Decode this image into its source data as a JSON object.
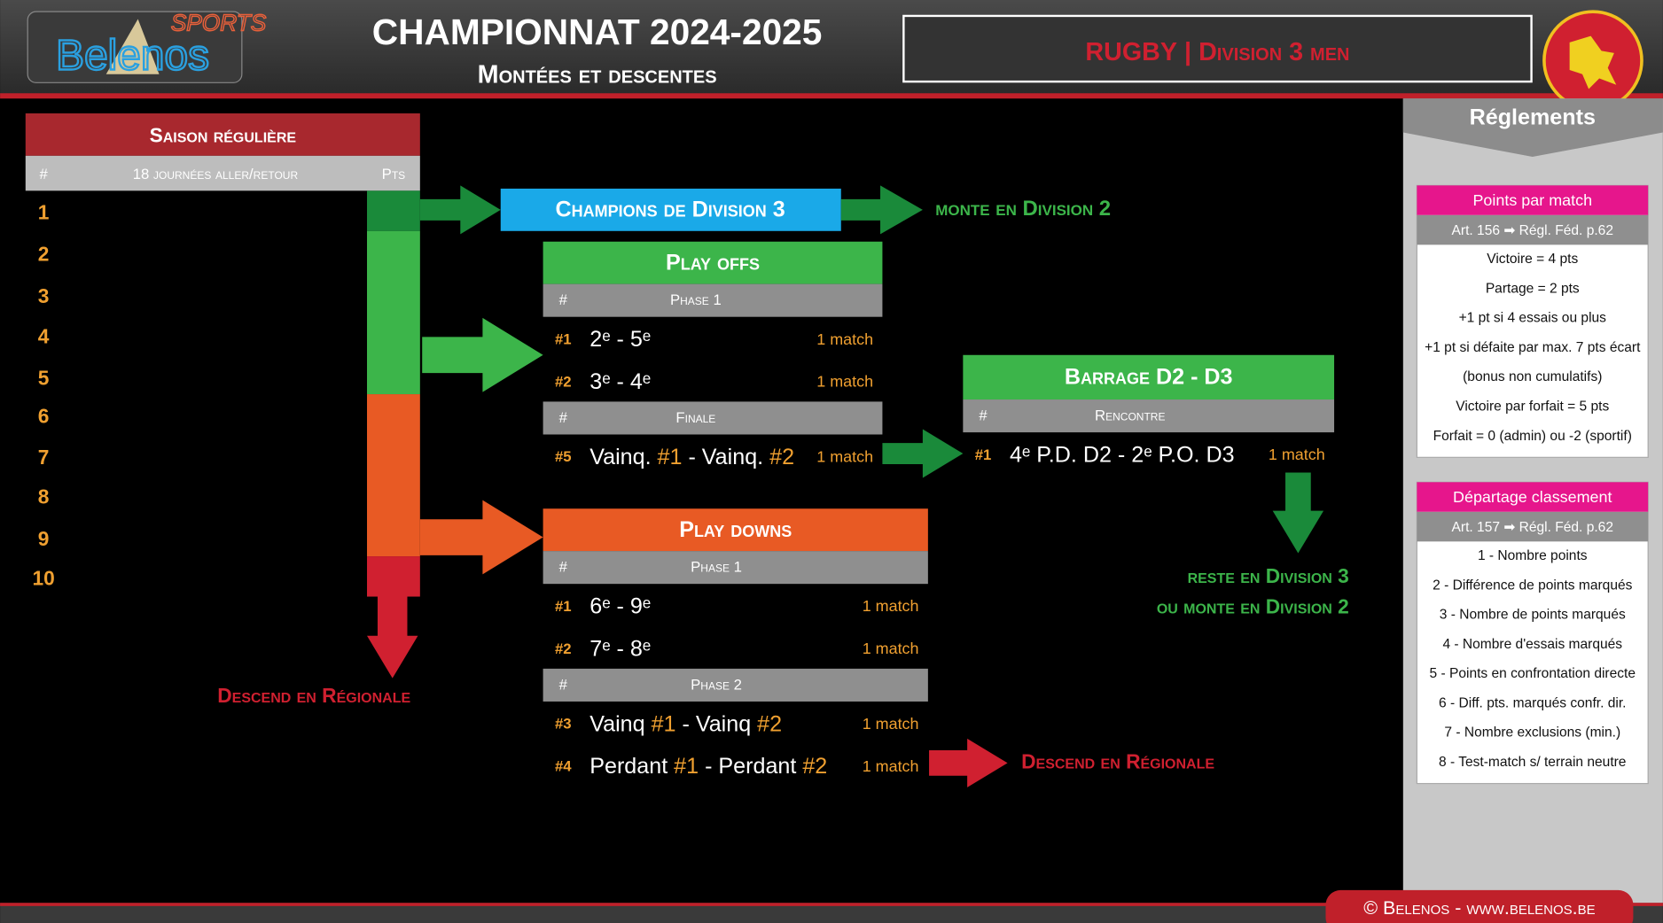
{
  "header": {
    "logo_top": "SPORTS",
    "logo_main": "Belenos",
    "title": "CHAMPIONNAT 2024-2025",
    "subtitle": "Montées et descentes",
    "badge": {
      "sport": "RUGBY",
      "separator": "|",
      "division": "Division 3 men"
    }
  },
  "season": {
    "title": "Saison régulière",
    "columns": [
      "#",
      "18 journées aller/retour",
      "Pts"
    ],
    "ranks": [
      1,
      2,
      3,
      4,
      5,
      6,
      7,
      8,
      9,
      10
    ]
  },
  "champions": {
    "title": "Champions de Division 3",
    "outcome": "monte en Division 2"
  },
  "playoffs": {
    "title": "Play offs",
    "sections": [
      {
        "columns": [
          "#",
          "Phase 1"
        ],
        "matches": [
          {
            "id": "#1",
            "teams": [
              {
                "text": "2ᵉ - 5ᵉ"
              }
            ],
            "count": "1 match"
          },
          {
            "id": "#2",
            "teams": [
              {
                "text": "3ᵉ - 4ᵉ"
              }
            ],
            "count": "1 match"
          }
        ]
      },
      {
        "columns": [
          "#",
          "Finale"
        ],
        "matches": [
          {
            "id": "#5",
            "teams": [
              {
                "text": "Vainq. "
              },
              {
                "text": "#1",
                "accent": true
              },
              {
                "text": " - Vainq. "
              },
              {
                "text": "#2",
                "accent": true
              }
            ],
            "count": "1 match"
          }
        ]
      }
    ]
  },
  "barrage": {
    "title": "Barrage D2 - D3",
    "sections": [
      {
        "columns": [
          "#",
          "Rencontre"
        ],
        "matches": [
          {
            "id": "#1",
            "teams": [
              {
                "text": "4ᵉ P.D. D2 - 2ᵉ P.O. D3"
              }
            ],
            "count": "1 match"
          }
        ]
      }
    ],
    "outcome": [
      "reste en Division 3",
      "ou monte en Division 2"
    ]
  },
  "playdowns": {
    "title": "Play downs",
    "sections": [
      {
        "columns": [
          "#",
          "Phase 1"
        ],
        "matches": [
          {
            "id": "#1",
            "teams": [
              {
                "text": "6ᵉ - 9ᵉ"
              }
            ],
            "count": "1 match"
          },
          {
            "id": "#2",
            "teams": [
              {
                "text": "7ᵉ - 8ᵉ"
              }
            ],
            "count": "1 match"
          }
        ]
      },
      {
        "columns": [
          "#",
          "Phase 2"
        ],
        "matches": [
          {
            "id": "#3",
            "teams": [
              {
                "text": "Vainq "
              },
              {
                "text": "#1",
                "accent": true
              },
              {
                "text": " - Vainq "
              },
              {
                "text": "#2",
                "accent": true
              }
            ],
            "count": "1 match"
          },
          {
            "id": "#4",
            "teams": [
              {
                "text": "Perdant "
              },
              {
                "text": "#1",
                "accent": true
              },
              {
                "text": " - Perdant "
              },
              {
                "text": "#2",
                "accent": true
              }
            ],
            "count": "1 match"
          }
        ]
      }
    ],
    "outcome": "Descend en Régionale"
  },
  "relegation": "Descend en Régionale",
  "rules": {
    "title": "Réglements",
    "boxes": [
      {
        "title": "Points par match",
        "reference": "Art. 156 ➡ Régl. Féd. p.62",
        "lines": [
          "Victoire = 4 pts",
          "Partage = 2 pts",
          "+1 pt si 4 essais ou plus",
          "+1 pt si défaite par max. 7 pts écart",
          "(bonus non cumulatifs)",
          "Victoire par forfait = 5 pts",
          "Forfait = 0 (admin) ou -2 (sportif)"
        ]
      },
      {
        "title": "Départage classement",
        "reference": "Art. 157 ➡ Régl. Féd. p.62",
        "lines": [
          "1 - Nombre points",
          "2 - Différence de points marqués",
          "3 - Nombre de points marqués",
          "4 - Nombre d'essais marqués",
          "5 - Points en confrontation directe",
          "6 - Diff. pts. marqués confr. dir.",
          "7 - Nombre exclusions (min.)",
          "8 - Test-match s/ terrain neutre"
        ]
      }
    ]
  },
  "footer": "© Belenos - www.belenos.be"
}
